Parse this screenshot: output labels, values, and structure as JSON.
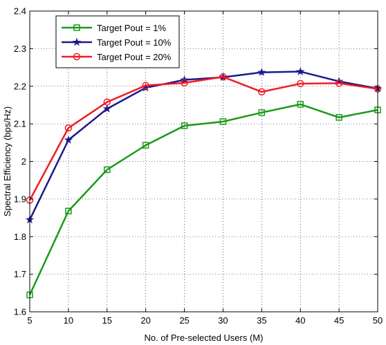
{
  "chart_data": {
    "type": "line",
    "title": "",
    "xlabel": "No. of Pre-selected Users (M)",
    "ylabel": "Spectral Efficiency (bps/Hz)",
    "xlim": [
      5,
      50
    ],
    "ylim": [
      1.6,
      2.4
    ],
    "x_ticks": [
      5,
      10,
      15,
      20,
      25,
      30,
      35,
      40,
      45,
      50
    ],
    "y_ticks": [
      1.6,
      1.7,
      1.8,
      1.9,
      2.0,
      2.1,
      2.2,
      2.3,
      2.4
    ],
    "y_tick_labels": [
      "1.6",
      "1.7",
      "1.8",
      "1.9",
      "2",
      "2.1",
      "2.2",
      "2.3",
      "2.4"
    ],
    "grid": true,
    "legend_position": "top-left",
    "x": [
      5,
      10,
      15,
      20,
      25,
      30,
      35,
      40,
      45,
      50
    ],
    "series": [
      {
        "name": "Target Pout = 1%",
        "color": "#1a9a1a",
        "marker": "square",
        "values": [
          1.645,
          1.868,
          1.978,
          2.043,
          2.095,
          2.106,
          2.13,
          2.152,
          2.117,
          2.137
        ]
      },
      {
        "name": "Target Pout = 10%",
        "color": "#1a1a8c",
        "marker": "star",
        "values": [
          1.845,
          2.057,
          2.14,
          2.196,
          2.217,
          2.224,
          2.237,
          2.239,
          2.213,
          2.194
        ]
      },
      {
        "name": "Target Pout = 20%",
        "color": "#ee1c24",
        "marker": "circle",
        "values": [
          1.897,
          2.089,
          2.158,
          2.202,
          2.209,
          2.225,
          2.185,
          2.207,
          2.208,
          2.193
        ]
      }
    ]
  }
}
